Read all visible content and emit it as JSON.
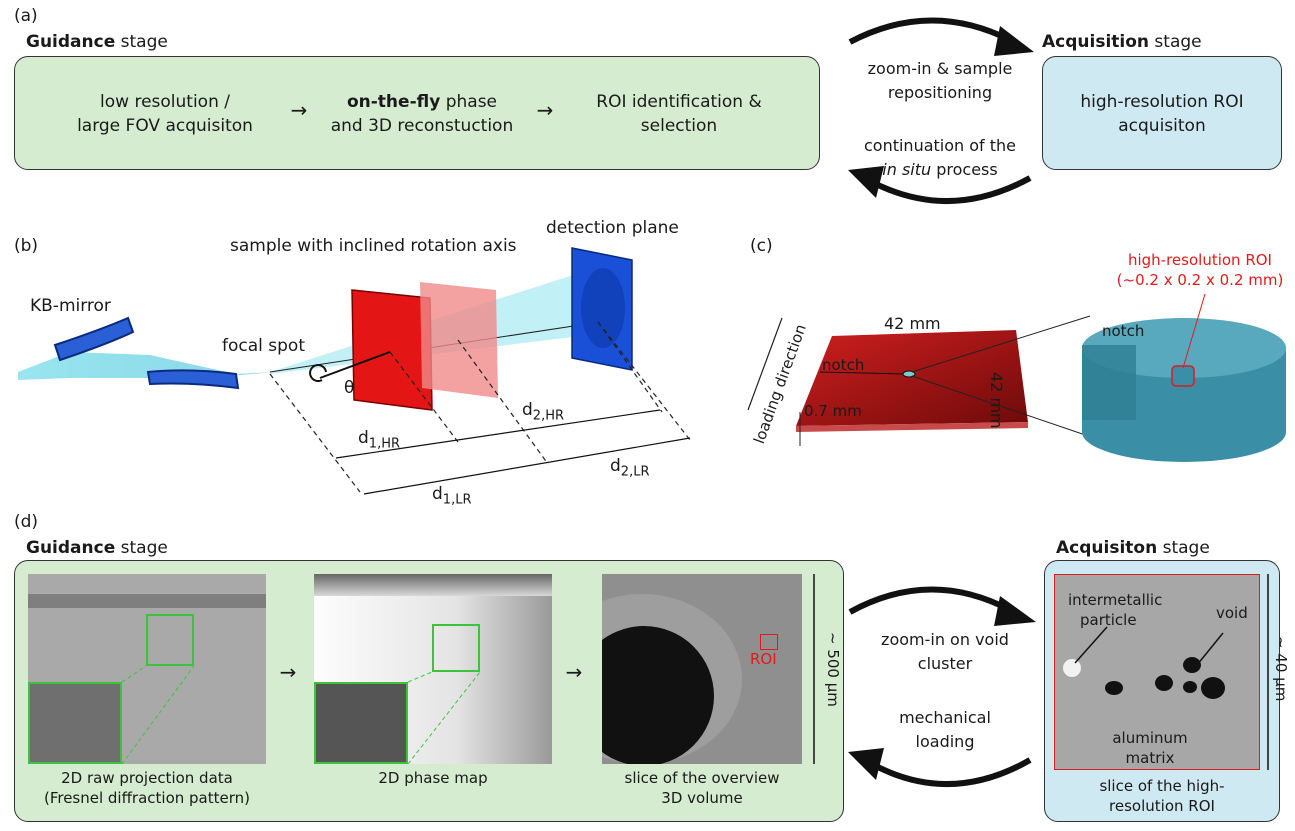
{
  "panel_a": {
    "label": "(a)",
    "guidance": {
      "bold": "Guidance",
      "rest": " stage"
    },
    "acquisition": {
      "bold": "Acquisition",
      "rest": " stage"
    },
    "step1": [
      "low resolution /",
      "large FOV acquisiton"
    ],
    "step2_bold": "on-the-fly",
    "step2_rest": " phase",
    "step2_line2": "and 3D reconstuction",
    "step3": [
      "ROI identification &",
      "selection"
    ],
    "acq_text": [
      "high-resolution ROI",
      "acquisiton"
    ],
    "arrow_top": [
      "zoom-in & sample",
      "repositioning"
    ],
    "arrow_bottom_line1": "continuation of the",
    "arrow_bottom_italic": "in situ",
    "arrow_bottom_rest": " process",
    "arrow_glyph": "→"
  },
  "panel_b": {
    "label": "(b)",
    "kb_mirror": "KB-mirror",
    "focal_spot": "focal spot",
    "sample": "sample with inclined rotation axis",
    "detection": "detection plane",
    "theta": "θ",
    "d1hr": "d",
    "d1hr_sub": "1,HR",
    "d2hr": "d",
    "d2hr_sub": "2,HR",
    "d1lr": "d",
    "d1lr_sub": "1,LR",
    "d2lr": "d",
    "d2lr_sub": "2,LR"
  },
  "panel_c": {
    "label": "(c)",
    "roi_title": "high-resolution ROI",
    "roi_size": "(~0.2 x 0.2 x 0.2 mm)",
    "width": "42 mm",
    "height": "42 mm",
    "thickness": "0.7 mm",
    "notch": "notch",
    "notch2": "notch",
    "loading": "loading direction"
  },
  "panel_d": {
    "label": "(d)",
    "guidance": {
      "bold": "Guidance",
      "rest": " stage"
    },
    "acquisition": {
      "bold": "Acquisiton",
      "rest": " stage"
    },
    "img1_caption": [
      "2D raw projection data",
      "(Fresnel diffraction pattern)"
    ],
    "img2_caption": [
      "2D phase map"
    ],
    "img3_caption": [
      "slice of the overview",
      "3D volume"
    ],
    "img4_caption": [
      "slice of the high-",
      "resolution ROI"
    ],
    "roi": "ROI",
    "scale1": "~ 500 μm",
    "scale2": "~ 40 μm",
    "arrow_top": [
      "zoom-in on void",
      "cluster"
    ],
    "arrow_bottom": [
      "mechanical",
      "loading"
    ],
    "intermetallic": [
      "intermetallic",
      "particle"
    ],
    "void": "void",
    "matrix": [
      "aluminum",
      "matrix"
    ],
    "arrow_glyph": "→"
  },
  "colors": {
    "green_fill": "#d5ecd0",
    "blue_fill": "#cfe9f3",
    "red": "#e01b1b",
    "roi_green": "#3ec23e"
  }
}
